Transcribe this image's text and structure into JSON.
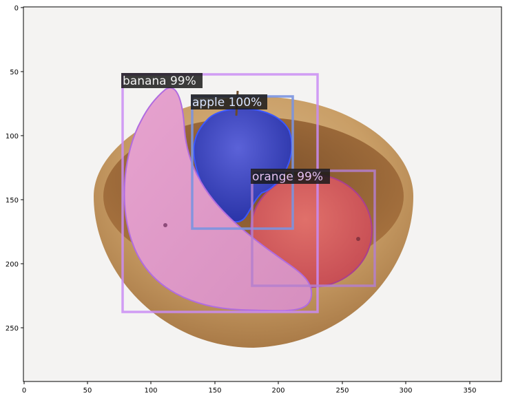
{
  "figure": {
    "x_ticks": [
      "0",
      "50",
      "100",
      "150",
      "200",
      "250",
      "300",
      "350"
    ],
    "y_ticks": [
      "0",
      "50",
      "100",
      "150",
      "200",
      "250"
    ]
  },
  "detections": [
    {
      "id": "banana",
      "label": "banana 99%",
      "color": "#c07be8"
    },
    {
      "id": "apple",
      "label": "apple 100%",
      "color": "#6a86d8"
    },
    {
      "id": "orange",
      "label": "orange 99%",
      "color": "#b07fc9"
    }
  ]
}
